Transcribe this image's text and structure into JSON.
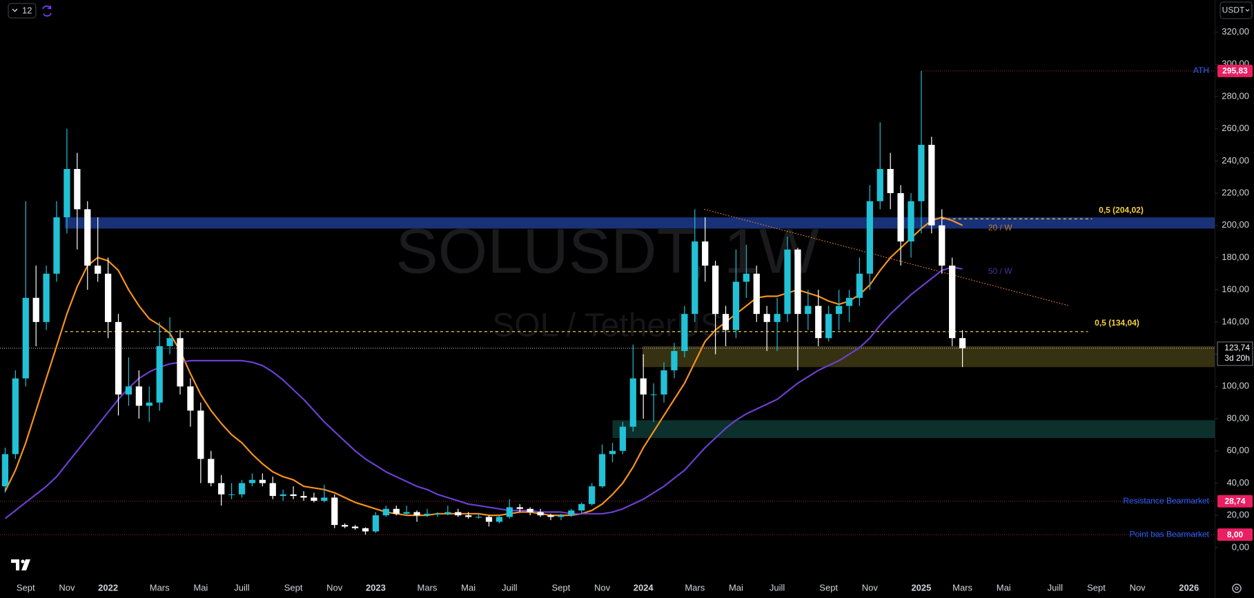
{
  "chart_data": {
    "type": "candlestick",
    "watermark": {
      "symbol": "SOLUSDT, 1W",
      "description": "SOL / TetherUS"
    },
    "toolbar": {
      "interval": "12",
      "currency": "USDT"
    },
    "categories": [
      null,
      null,
      "Sept",
      null,
      null,
      null,
      "Nov",
      null,
      null,
      null,
      "2022",
      null,
      null,
      null,
      null,
      "Mars",
      null,
      null,
      null,
      "Mai",
      null,
      null,
      null,
      "Juill",
      null,
      null,
      null,
      null,
      "Sept",
      null,
      null,
      null,
      "Nov",
      null,
      null,
      null,
      "2023",
      null,
      null,
      null,
      null,
      "Mars",
      null,
      null,
      null,
      "Mai",
      null,
      null,
      null,
      "Juill",
      null,
      null,
      null,
      null,
      "Sept",
      null,
      null,
      null,
      "Nov",
      null,
      null,
      null,
      "2024",
      null,
      null,
      null,
      null,
      "Mars",
      null,
      null,
      null,
      "Mai",
      null,
      null,
      null,
      "Juill",
      null,
      null,
      null,
      null,
      "Sept",
      null,
      null,
      null,
      "Nov",
      null,
      null,
      null,
      null,
      "2025",
      null,
      null,
      null,
      "Mars",
      null,
      null,
      null,
      "Mai",
      null,
      null,
      null,
      null,
      "Juill",
      null,
      null,
      null,
      "Sept",
      null,
      null,
      null,
      "Nov",
      null,
      null,
      null,
      null,
      "2026",
      null,
      null
    ],
    "candles": {
      "up_color": "#22c1d6",
      "down_color": "#ffffff",
      "open": [
        38,
        58,
        105,
        155,
        140,
        170,
        205,
        235,
        210,
        175,
        170,
        140,
        95,
        100,
        88,
        90,
        125,
        130,
        100,
        85,
        55,
        40,
        33,
        33,
        40,
        42,
        40,
        32,
        33,
        32,
        31,
        29,
        31,
        14,
        13,
        12,
        10,
        20,
        24,
        21,
        22,
        20,
        21,
        21,
        22,
        20,
        19,
        19,
        16,
        19,
        25,
        24,
        22,
        20,
        19,
        20,
        23,
        27,
        38,
        58,
        60,
        75,
        105,
        95,
        95,
        110,
        122,
        145,
        190,
        175,
        145,
        135,
        165,
        170,
        145,
        140,
        145,
        185,
        145,
        150,
        130,
        145,
        150,
        155,
        170,
        215,
        235,
        220,
        190,
        215,
        250,
        200,
        175,
        130,
        null,
        null,
        null,
        null,
        null,
        null,
        null,
        null,
        null,
        null,
        null,
        null,
        null,
        null,
        null,
        null,
        null,
        null,
        null,
        null,
        null,
        null,
        null,
        null
      ],
      "high": [
        62,
        110,
        215,
        175,
        175,
        215,
        260,
        245,
        215,
        205,
        180,
        145,
        118,
        110,
        100,
        140,
        143,
        135,
        105,
        90,
        60,
        45,
        40,
        42,
        46,
        46,
        44,
        36,
        38,
        35,
        34,
        39,
        33,
        15,
        14,
        12.5,
        22,
        26,
        26,
        26,
        23,
        24,
        22,
        26,
        24,
        22,
        21,
        20,
        20,
        30,
        27,
        25,
        24,
        21,
        21,
        24,
        28,
        40,
        64,
        65,
        78,
        126,
        120,
        102,
        115,
        127,
        150,
        210,
        205,
        178,
        150,
        185,
        188,
        175,
        150,
        155,
        193,
        186,
        160,
        160,
        150,
        160,
        160,
        180,
        225,
        264,
        245,
        225,
        220,
        295.83,
        255,
        210,
        180,
        135,
        null,
        null,
        null,
        null,
        null,
        null,
        null,
        null,
        null,
        null,
        null,
        null,
        null,
        null,
        null,
        null,
        null,
        null,
        null,
        null,
        null,
        null,
        null,
        null
      ],
      "low": [
        34,
        55,
        100,
        125,
        135,
        165,
        195,
        185,
        160,
        165,
        130,
        82,
        88,
        80,
        78,
        85,
        120,
        95,
        75,
        40,
        38,
        26,
        30,
        31,
        38,
        38,
        30,
        29,
        30,
        29,
        28,
        28,
        12,
        12,
        11,
        8,
        9,
        19,
        20,
        20,
        16,
        19,
        19,
        20,
        19,
        18,
        18,
        13,
        15,
        18,
        22,
        20,
        19,
        17,
        17,
        19,
        21,
        26,
        37,
        53,
        58,
        72,
        80,
        78,
        90,
        105,
        118,
        140,
        165,
        120,
        125,
        130,
        155,
        140,
        122,
        122,
        140,
        110,
        135,
        125,
        128,
        135,
        140,
        150,
        160,
        210,
        210,
        175,
        180,
        195,
        195,
        170,
        125,
        112,
        null,
        null,
        null,
        null,
        null,
        null,
        null,
        null,
        null,
        null,
        null,
        null,
        null,
        null,
        null,
        null,
        null,
        null,
        null,
        null,
        null,
        null,
        null,
        null
      ],
      "close": [
        58,
        105,
        155,
        140,
        170,
        205,
        235,
        210,
        175,
        170,
        140,
        95,
        100,
        88,
        90,
        125,
        130,
        100,
        85,
        55,
        40,
        33,
        33,
        40,
        42,
        40,
        32,
        33,
        32,
        31,
        29,
        31,
        14,
        13,
        12,
        10,
        20,
        24,
        21,
        22,
        20,
        21,
        21,
        22,
        20,
        19,
        19,
        16,
        19,
        25,
        24,
        22,
        20,
        19,
        20,
        23,
        27,
        38,
        58,
        60,
        75,
        105,
        95,
        95,
        110,
        122,
        145,
        190,
        175,
        145,
        135,
        165,
        170,
        145,
        140,
        145,
        185,
        145,
        150,
        130,
        145,
        150,
        155,
        170,
        215,
        235,
        220,
        190,
        215,
        250,
        200,
        175,
        130,
        123.74,
        null,
        null,
        null,
        null,
        null,
        null,
        null,
        null,
        null,
        null,
        null,
        null,
        null,
        null,
        null,
        null,
        null,
        null,
        null,
        null,
        null,
        null,
        null,
        null
      ]
    },
    "lines": [
      {
        "name": "20 / W",
        "color": "#f7931e",
        "values": [
          35,
          48,
          65,
          85,
          105,
          125,
          145,
          162,
          175,
          180,
          178,
          172,
          160,
          150,
          142,
          138,
          133,
          122,
          108,
          95,
          85,
          77,
          70,
          65,
          58,
          52,
          47,
          44,
          42,
          38,
          37,
          36,
          34,
          31,
          28,
          26,
          24,
          22,
          21,
          20,
          20,
          20,
          21,
          21,
          21,
          21,
          21,
          20,
          20,
          21,
          22,
          22,
          21,
          20,
          20,
          20,
          21,
          23,
          27,
          33,
          40,
          50,
          62,
          72,
          82,
          92,
          102,
          115,
          128,
          135,
          140,
          145,
          150,
          155,
          156,
          156,
          158,
          160,
          158,
          156,
          153,
          151,
          153,
          157,
          163,
          172,
          180,
          186,
          192,
          198,
          203,
          205,
          203,
          200,
          null,
          null,
          null,
          null,
          null,
          null,
          null,
          null,
          null,
          null,
          null,
          null,
          null,
          null,
          null,
          null,
          null,
          null,
          null,
          null,
          null,
          null,
          null,
          null
        ]
      },
      {
        "name": "50 / W",
        "color": "#6c3fd1",
        "values": [
          18,
          23,
          28,
          33,
          38,
          44,
          52,
          60,
          68,
          76,
          84,
          92,
          99,
          105,
          109,
          112,
          114,
          115,
          116,
          116,
          116,
          116,
          116,
          116,
          115,
          113,
          109,
          104,
          98,
          92,
          85,
          78,
          72,
          66,
          60,
          55,
          51,
          47,
          44,
          41,
          38,
          36,
          33,
          31,
          29,
          27,
          26,
          25,
          24,
          23,
          23,
          23,
          22,
          22,
          22,
          21,
          21,
          21,
          21,
          22,
          24,
          27,
          30,
          34,
          38,
          43,
          48,
          55,
          62,
          68,
          74,
          79,
          83,
          86,
          89,
          92,
          97,
          102,
          106,
          110,
          113,
          116,
          120,
          124,
          130,
          138,
          145,
          151,
          157,
          162,
          167,
          172,
          174,
          173,
          null,
          null,
          null,
          null,
          null,
          null,
          null,
          null,
          null,
          null,
          null,
          null,
          null,
          null,
          null,
          null,
          null,
          null,
          null,
          null,
          null,
          null,
          null,
          null
        ]
      }
    ],
    "zones": [
      {
        "low": 198,
        "high": 205,
        "color": "#1c3a8c"
      },
      {
        "low": 112,
        "high": 125,
        "color": "#403a14"
      },
      {
        "low": 68,
        "high": 79,
        "color": "#0e3a34"
      }
    ],
    "trendline": {
      "values": [
        210,
        150
      ],
      "color": "#e07b2a"
    },
    "levels": [
      {
        "label": "ATH",
        "value": 295.83,
        "value_label": "295,83",
        "color": "#e91e63"
      },
      {
        "label": "Resistance Bearmarket",
        "value": 28.74,
        "value_label": "28,74",
        "color": "#e91e63"
      },
      {
        "label": "Point bas Bearmarket",
        "value": 8,
        "value_label": "8,00",
        "color": "#e91e63"
      }
    ],
    "fib_levels": [
      {
        "label": "0,5 (204,02)",
        "value": 204.02
      },
      {
        "label": "0,5 (134,04)",
        "value": 134.04
      }
    ],
    "fib_color": "#f5d142",
    "last_price": {
      "value": 123.74,
      "value_label": "123,74",
      "countdown": "3d 20h"
    },
    "ylim": [
      -17.2,
      339.9
    ],
    "yticks": [
      {
        "value": 0,
        "label": "0,00"
      },
      {
        "value": 20,
        "label": "20,00"
      },
      {
        "value": 40,
        "label": "40,00"
      },
      {
        "value": 60,
        "label": "60,00"
      },
      {
        "value": 80,
        "label": "80,00"
      },
      {
        "value": 100,
        "label": "100,00"
      },
      {
        "value": 120,
        "label": "120,00"
      },
      {
        "value": 140,
        "label": "140,00"
      },
      {
        "value": 160,
        "label": "160,00"
      },
      {
        "value": 180,
        "label": "180,00"
      },
      {
        "value": 200,
        "label": "200,00"
      },
      {
        "value": 220,
        "label": "220,00"
      },
      {
        "value": 240,
        "label": "240,00"
      },
      {
        "value": 260,
        "label": "260,00"
      },
      {
        "value": 280,
        "label": "280,00"
      },
      {
        "value": 300,
        "label": "300,00"
      },
      {
        "value": 320,
        "label": "320,00"
      }
    ],
    "grid": false
  }
}
